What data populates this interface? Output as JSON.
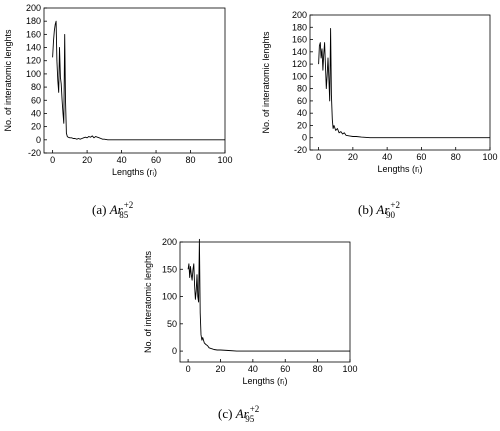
{
  "chart_data": [
    {
      "type": "line",
      "xlabel": "Lengths (rᵢ)",
      "ylabel": "No. of interatomic lenghts",
      "xlim": [
        -5,
        100
      ],
      "ylim": [
        -20,
        200
      ],
      "xticks": [
        0,
        20,
        40,
        60,
        80,
        100
      ],
      "yticks": [
        -20,
        0,
        20,
        40,
        60,
        80,
        100,
        120,
        140,
        160,
        180,
        200
      ],
      "x": [
        0,
        0.5,
        1,
        1.5,
        2,
        2.5,
        3,
        3.5,
        4,
        4.5,
        5,
        5.5,
        6,
        6.5,
        7,
        7.5,
        8,
        8.5,
        9,
        10,
        11,
        12,
        13,
        14,
        15,
        16,
        17,
        18,
        19,
        20,
        21,
        22,
        23,
        24,
        25,
        26,
        27,
        28,
        29,
        30,
        32,
        34,
        36,
        40,
        50,
        60,
        70,
        80,
        90,
        100
      ],
      "values": [
        125,
        150,
        165,
        175,
        180,
        120,
        90,
        72,
        140,
        95,
        85,
        60,
        40,
        25,
        160,
        60,
        10,
        5,
        4,
        3,
        3,
        2,
        2,
        1,
        2,
        1,
        2,
        3,
        4,
        3,
        5,
        4,
        6,
        3,
        5,
        4,
        3,
        2,
        1,
        1,
        0,
        0,
        0,
        0,
        0,
        0,
        0,
        0,
        0,
        0
      ],
      "caption": {
        "prefix": "(a) ",
        "base": "Ar",
        "sup": "+2",
        "sub": "85"
      }
    },
    {
      "type": "line",
      "xlabel": "Lengths (rᵢ)",
      "ylabel": "No. of interatomic lenghts",
      "xlim": [
        -5,
        100
      ],
      "ylim": [
        -20,
        200
      ],
      "xticks": [
        0,
        20,
        40,
        60,
        80,
        100
      ],
      "yticks": [
        -20,
        0,
        20,
        40,
        60,
        80,
        100,
        120,
        140,
        160,
        180,
        200
      ],
      "x": [
        0,
        0.5,
        1,
        1.5,
        2,
        2.5,
        3,
        3.5,
        4,
        4.5,
        5,
        5.5,
        6,
        6.5,
        7,
        7.5,
        8,
        8.5,
        9,
        10,
        11,
        12,
        13,
        14,
        15,
        16,
        18,
        20,
        22,
        25,
        30,
        40,
        50,
        60,
        70,
        80,
        90,
        100
      ],
      "values": [
        120,
        150,
        155,
        130,
        145,
        110,
        135,
        155,
        120,
        80,
        100,
        130,
        95,
        60,
        178,
        70,
        30,
        15,
        20,
        12,
        15,
        8,
        10,
        6,
        8,
        4,
        3,
        2,
        2,
        1,
        0,
        0,
        0,
        0,
        0,
        0,
        0,
        0
      ],
      "caption": {
        "prefix": "(b) ",
        "base": "Ar",
        "sup": "+2",
        "sub": "90"
      }
    },
    {
      "type": "line",
      "xlabel": "Lengths (rᵢ)",
      "ylabel": "No. of interatomic lenghts",
      "xlim": [
        -5,
        100
      ],
      "ylim": [
        -20,
        200
      ],
      "xticks": [
        0,
        20,
        40,
        60,
        80,
        100
      ],
      "yticks": [
        0,
        50,
        100,
        150,
        200
      ],
      "x": [
        0,
        0.5,
        1,
        1.5,
        2,
        2.5,
        3,
        3.5,
        4,
        4.5,
        5,
        5.5,
        6,
        6.5,
        7,
        7.5,
        8,
        8.5,
        9,
        10,
        11,
        12,
        13,
        14,
        15,
        16,
        18,
        20,
        25,
        30,
        40,
        50,
        60,
        70,
        80,
        90,
        100
      ],
      "values": [
        150,
        160,
        135,
        155,
        140,
        130,
        150,
        160,
        120,
        95,
        110,
        140,
        100,
        90,
        205,
        70,
        30,
        20,
        25,
        15,
        12,
        10,
        6,
        5,
        4,
        3,
        2,
        2,
        1,
        0,
        0,
        0,
        0,
        0,
        0,
        0,
        0
      ],
      "caption": {
        "prefix": "(c) ",
        "base": "Ar",
        "sup": "+2",
        "sub": "95"
      }
    }
  ]
}
